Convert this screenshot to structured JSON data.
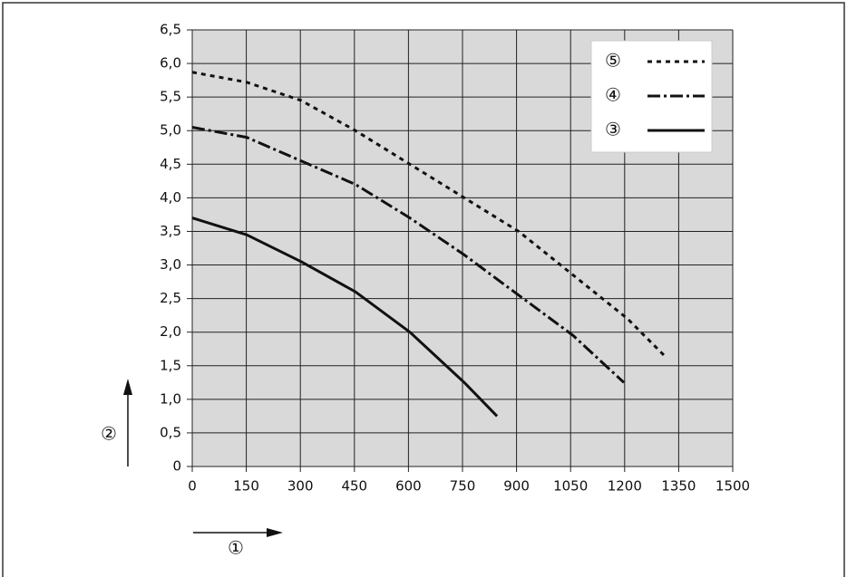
{
  "chart_data": {
    "type": "line",
    "x_label": "①",
    "y_label": "②",
    "xlim": [
      0,
      1500
    ],
    "ylim": [
      0,
      6.5
    ],
    "xticks": [
      0,
      150,
      300,
      450,
      600,
      750,
      900,
      1050,
      1200,
      1350,
      1500
    ],
    "yticks": [
      0,
      {
        "value": 0.5,
        "label": "0,5"
      },
      {
        "value": 1,
        "label": "1,0"
      },
      {
        "value": 1.5,
        "label": "1,5"
      },
      {
        "value": 2,
        "label": "2,0"
      },
      {
        "value": 2.5,
        "label": "2,5"
      },
      {
        "value": 3,
        "label": "3,0"
      },
      {
        "value": 3.5,
        "label": "3,5"
      },
      {
        "value": 4,
        "label": "4,0"
      },
      {
        "value": 4.5,
        "label": "4,5"
      },
      {
        "value": 5,
        "label": "5,0"
      },
      {
        "value": 5.5,
        "label": "5,5"
      },
      {
        "value": 6,
        "label": "6,0"
      },
      {
        "value": 6.5,
        "label": "6,5"
      }
    ],
    "grid": true,
    "legend": "top-right",
    "background": "#d9d9d9",
    "series": [
      {
        "name": "⑤",
        "color": "#111111",
        "dash": "5,5",
        "x": [
          0,
          151,
          302,
          453,
          604,
          755,
          906,
          1057,
          1208,
          1316
        ],
        "values": [
          5.87,
          5.72,
          5.45,
          5.0,
          4.5,
          4.0,
          3.5,
          2.85,
          2.2,
          1.62
        ]
      },
      {
        "name": "④",
        "color": "#111111",
        "dash": "14,4,3,4",
        "x": [
          0,
          151,
          302,
          453,
          604,
          755,
          906,
          1057,
          1198
        ],
        "values": [
          5.05,
          4.9,
          4.55,
          4.2,
          3.7,
          3.15,
          2.55,
          1.95,
          1.25
        ]
      },
      {
        "name": "③",
        "color": "#111111",
        "dash": "none",
        "x": [
          0,
          151,
          302,
          453,
          604,
          755,
          846
        ],
        "values": [
          3.7,
          3.45,
          3.05,
          2.6,
          2.0,
          1.25,
          0.75
        ]
      }
    ]
  }
}
